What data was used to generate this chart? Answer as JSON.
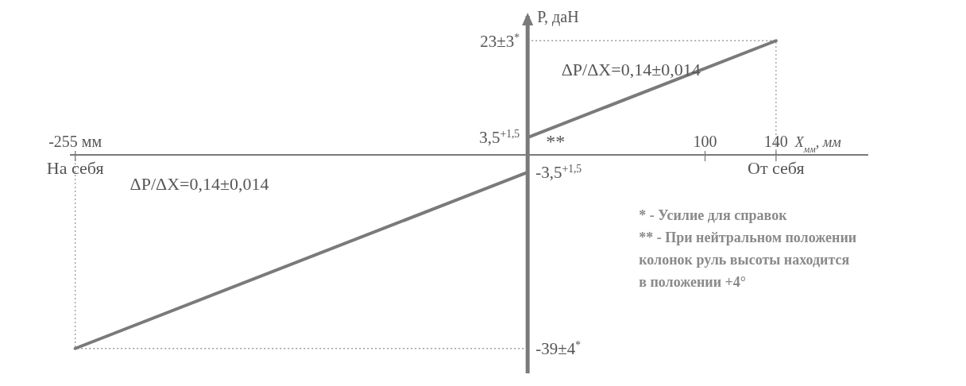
{
  "chart_data": {
    "type": "line",
    "xlabel": "X$_{мм}$, мм",
    "ylabel": "P, даН",
    "xlim": [
      -258,
      192
    ],
    "ylim": [
      -44,
      28
    ],
    "xticks": [
      {
        "value": -255,
        "label": "-255 мм"
      },
      100,
      140
    ],
    "series": [
      {
        "color": "#7a7a7a",
        "x": [
          0,
          140
        ],
        "values": [
          3.5,
          23
        ],
        "value_labels": [
          "3,5$^{+1,5}$",
          null
        ]
      },
      {
        "color": "#7a7a7a",
        "x": [
          -255,
          0
        ],
        "values": [
          -39,
          -3.5
        ],
        "value_labels": [
          null,
          "-3,5$^{+1,5}$"
        ]
      }
    ],
    "ref_lines": [
      {
        "axis": "y",
        "value": 23,
        "label": "23±3$^{*}$",
        "line_style": "dotted",
        "color": "#9a9a9a"
      },
      {
        "axis": "x",
        "value": 140,
        "line_style": "dotted",
        "color": "#9a9a9a"
      },
      {
        "axis": "y",
        "value": -39,
        "label": "-39±4$^{*}$",
        "line_style": "dotted",
        "color": "#9a9a9a"
      },
      {
        "axis": "x",
        "value": -255,
        "line_style": "dotted",
        "color": "#9a9a9a"
      }
    ],
    "annotations": [
      "ΔP/ΔX=0,14±0,014",
      "ΔP/ΔX=0,14±0,014",
      "**",
      "На себя",
      "От себя",
      "* - Усилие для справок",
      "** - При нейтральном положении колонок руль высоты находится в положении +4°"
    ],
    "marker": "none",
    "line_style": "solid"
  }
}
